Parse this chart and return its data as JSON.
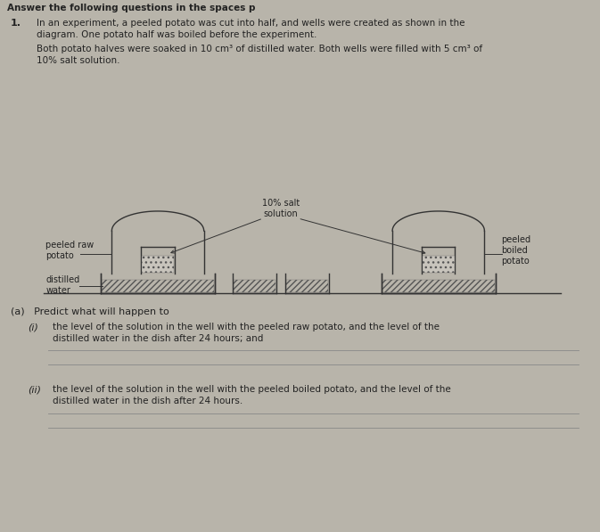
{
  "bg_color": "#b8b4aa",
  "paper_color": "#d4d0c8",
  "diagram_bg": "#c8c4bc",
  "lc": "#333333",
  "tc": "#222222",
  "hatch_ec": "#555555",
  "answer_lc": "#888888",
  "title": "Answer the following questions in the spaces p",
  "q1": "1.",
  "q1_line1": "In an experiment, a peeled potato was cut into half, and wells were created as shown in the",
  "q1_line2": "diagram. One potato half was boiled before the experiment.",
  "q1_line3": "Both potato halves were soaked in 10 cm³ of distilled water. Both wells were filled with 5 cm³ of",
  "q1_line4": "10% salt solution.",
  "label_raw": "peeled raw\npotato",
  "label_dist": "distilled\nwater",
  "label_salt": "10% salt\nsolution",
  "label_boiled": "peeled\nboiled\npotato",
  "a_header": "(a)   Predict what will happen to",
  "i_label": "(i)",
  "i_line1": "the level of the solution in the well with the peeled raw potato, and the level of the",
  "i_line2": "distilled water in the dish after 24 hours; and",
  "ii_label": "(ii)",
  "ii_line1": "the level of the solution in the well with the peeled boiled potato, and the level of the",
  "ii_line2": "distilled water in the dish after 24 hours."
}
